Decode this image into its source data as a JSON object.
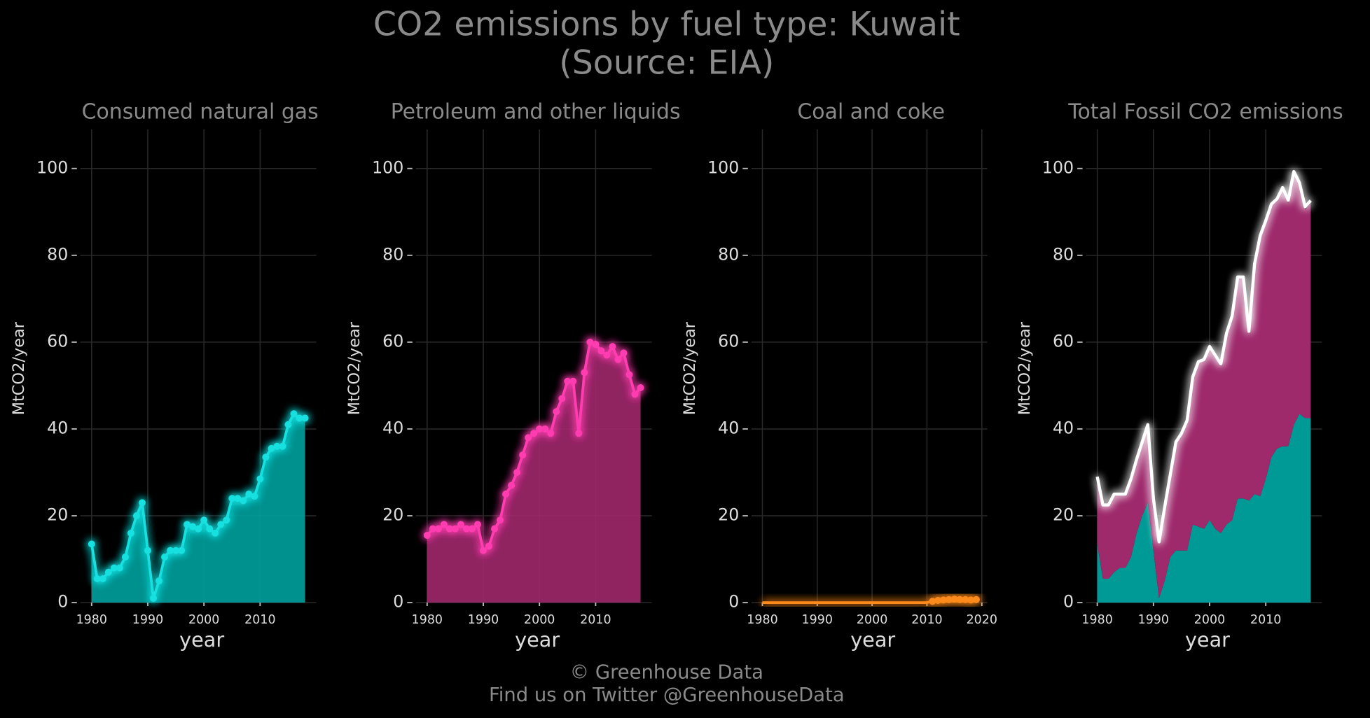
{
  "title": "CO2 emissions by fuel type: Kuwait",
  "subtitle": "(Source: EIA)",
  "footer": [
    "© Greenhouse Data",
    "Find us on Twitter @GreenhouseData"
  ],
  "chart_data": [
    {
      "type": "area",
      "title": "Consumed natural gas",
      "xlabel": "year",
      "ylabel": "MtCO2/year",
      "x": [
        1980,
        1981,
        1982,
        1983,
        1984,
        1985,
        1986,
        1987,
        1988,
        1989,
        1990,
        1991,
        1992,
        1993,
        1994,
        1995,
        1996,
        1997,
        1998,
        1999,
        2000,
        2001,
        2002,
        2003,
        2004,
        2005,
        2006,
        2007,
        2008,
        2009,
        2010,
        2011,
        2012,
        2013,
        2014,
        2015,
        2016,
        2017,
        2018
      ],
      "series": [
        {
          "name": "Consumed natural gas",
          "color": "#19e0e0",
          "fill": "#00a09c",
          "values": [
            13.5,
            5.5,
            5.5,
            7,
            8,
            8,
            10.5,
            16,
            20,
            23,
            12,
            1,
            5,
            10.5,
            12,
            12,
            12,
            18,
            17.5,
            17,
            19,
            17,
            16,
            18,
            19,
            24,
            24,
            23.5,
            25,
            24.5,
            28.5,
            33.5,
            35.5,
            36,
            36,
            41,
            43.5,
            42.5,
            42.5
          ]
        }
      ],
      "xlim": [
        1978,
        2020
      ],
      "ylim": [
        -2,
        109
      ],
      "xticks": [
        1980,
        1990,
        2000,
        2010
      ],
      "yticks": [
        0,
        20,
        40,
        60,
        80,
        100
      ],
      "grid": true
    },
    {
      "type": "area",
      "title": "Petroleum and other liquids",
      "xlabel": "year",
      "ylabel": "MtCO2/year",
      "x": [
        1980,
        1981,
        1982,
        1983,
        1984,
        1985,
        1986,
        1987,
        1988,
        1989,
        1990,
        1991,
        1992,
        1993,
        1994,
        1995,
        1996,
        1997,
        1998,
        1999,
        2000,
        2001,
        2002,
        2003,
        2004,
        2005,
        2006,
        2007,
        2008,
        2009,
        2010,
        2011,
        2012,
        2013,
        2014,
        2015,
        2016,
        2017,
        2018
      ],
      "series": [
        {
          "name": "Petroleum and other liquids",
          "color": "#ff3cb0",
          "fill": "#a0286c",
          "values": [
            15.5,
            17,
            17,
            18,
            17,
            17,
            18,
            17,
            17,
            18,
            12,
            13,
            17,
            19,
            25,
            27,
            30,
            34,
            38,
            39,
            40,
            40,
            39,
            44,
            47,
            51,
            51,
            39,
            53,
            60,
            59.5,
            58,
            57,
            59,
            56,
            57.5,
            52.5,
            48,
            49.5
          ]
        }
      ],
      "xlim": [
        1978,
        2020
      ],
      "ylim": [
        -2,
        109
      ],
      "xticks": [
        1980,
        1990,
        2000,
        2010
      ],
      "yticks": [
        0,
        20,
        40,
        60,
        80,
        100
      ],
      "grid": true
    },
    {
      "type": "area",
      "title": "Coal and coke",
      "xlabel": "year",
      "ylabel": "MtCO2/year",
      "x": [
        1980,
        1981,
        1982,
        1983,
        1984,
        1985,
        1986,
        1987,
        1988,
        1989,
        1990,
        1991,
        1992,
        1993,
        1994,
        1995,
        1996,
        1997,
        1998,
        1999,
        2000,
        2001,
        2002,
        2003,
        2004,
        2005,
        2006,
        2007,
        2008,
        2009,
        2010,
        2011,
        2012,
        2013,
        2014,
        2015,
        2016,
        2017,
        2018,
        2019
      ],
      "series": [
        {
          "name": "Coal and coke",
          "color": "#ff8a1c",
          "fill": "#b85e10",
          "values": [
            0,
            0,
            0,
            0,
            0,
            0,
            0,
            0,
            0,
            0,
            0,
            0,
            0,
            0,
            0,
            0,
            0,
            0,
            0,
            0,
            0,
            0,
            0,
            0,
            0,
            0,
            0,
            0,
            0,
            0,
            0,
            0.3,
            0.5,
            0.6,
            0.7,
            0.8,
            0.7,
            0.7,
            0.6,
            0.7
          ]
        }
      ],
      "xlim": [
        1978,
        2021
      ],
      "ylim": [
        -2,
        109
      ],
      "xticks": [
        1980,
        1990,
        2000,
        2010,
        2020
      ],
      "yticks": [
        0,
        20,
        40,
        60,
        80,
        100
      ],
      "grid": true
    },
    {
      "type": "stacked_area",
      "title": "Total Fossil CO2 emissions",
      "xlabel": "year",
      "ylabel": "MtCO2/year",
      "x": [
        1980,
        1981,
        1982,
        1983,
        1984,
        1985,
        1986,
        1987,
        1988,
        1989,
        1990,
        1991,
        1992,
        1993,
        1994,
        1995,
        1996,
        1997,
        1998,
        1999,
        2000,
        2001,
        2002,
        2003,
        2004,
        2005,
        2006,
        2007,
        2008,
        2009,
        2010,
        2011,
        2012,
        2013,
        2014,
        2015,
        2016,
        2017,
        2018
      ],
      "series": [
        {
          "name": "Consumed natural gas",
          "color": "#009a96",
          "kind": "stack",
          "values": [
            13.5,
            5.5,
            5.5,
            7,
            8,
            8,
            10.5,
            16,
            20,
            23,
            12,
            1,
            5,
            10.5,
            12,
            12,
            12,
            18,
            17.5,
            17,
            19,
            17,
            16,
            18,
            19,
            24,
            24,
            23.5,
            25,
            24.5,
            28.5,
            33.5,
            35.5,
            36,
            36,
            41,
            43.5,
            42.5,
            42.5
          ]
        },
        {
          "name": "Petroleum and other liquids",
          "color": "#9e2a6c",
          "kind": "stack",
          "values": [
            15.5,
            17,
            17,
            18,
            17,
            17,
            18,
            17,
            17,
            18,
            12,
            13,
            17,
            19,
            25,
            27,
            30,
            34,
            38,
            39,
            40,
            40,
            39,
            44,
            47,
            51,
            51,
            39,
            53,
            60,
            59.5,
            58,
            57,
            59,
            56,
            57.5,
            52.5,
            48,
            49.5
          ]
        },
        {
          "name": "Total Fossil CO2 emissions",
          "color": "#ffffff",
          "kind": "line",
          "values": [
            29,
            22.5,
            22.5,
            25,
            25,
            25,
            28.5,
            33,
            37,
            41,
            24,
            14,
            22,
            29.5,
            37,
            39,
            42,
            52,
            55.5,
            56,
            59,
            57,
            55,
            62,
            66,
            75,
            75,
            62.5,
            78,
            84.5,
            88,
            91.8,
            93,
            95.6,
            92.7,
            99.3,
            96.7,
            91.2,
            92.6
          ]
        }
      ],
      "xlim": [
        1978,
        2020
      ],
      "ylim": [
        -2,
        109
      ],
      "xticks": [
        1980,
        1990,
        2000,
        2010
      ],
      "yticks": [
        0,
        20,
        40,
        60,
        80,
        100
      ],
      "grid": true
    }
  ]
}
